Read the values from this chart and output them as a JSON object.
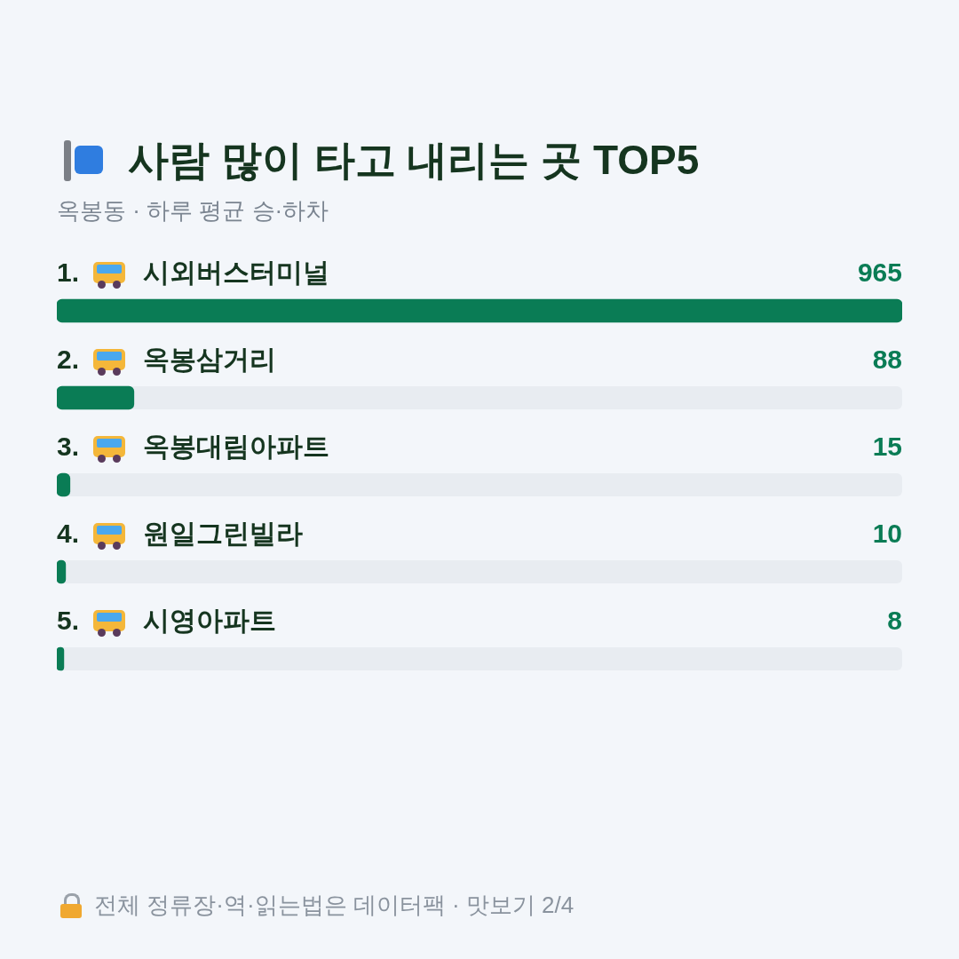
{
  "chart_data": {
    "type": "bar",
    "orientation": "horizontal",
    "title": "사람 많이 타고 내리는 곳 TOP5",
    "subtitle": "옥봉동 · 하루 평균 승·하차",
    "categories": [
      "1. 시외버스터미널",
      "2. 옥봉삼거리",
      "3. 옥봉대림아파트",
      "4. 원일그린빌라",
      "5. 시영아파트"
    ],
    "values": [
      965,
      88,
      15,
      10,
      8
    ],
    "color": "#0a7c55",
    "data_labels": true,
    "legend": false,
    "annotations": [
      "전체 정류장·역·읽는법은 데이터팩 · 맛보기 2/4"
    ]
  }
}
